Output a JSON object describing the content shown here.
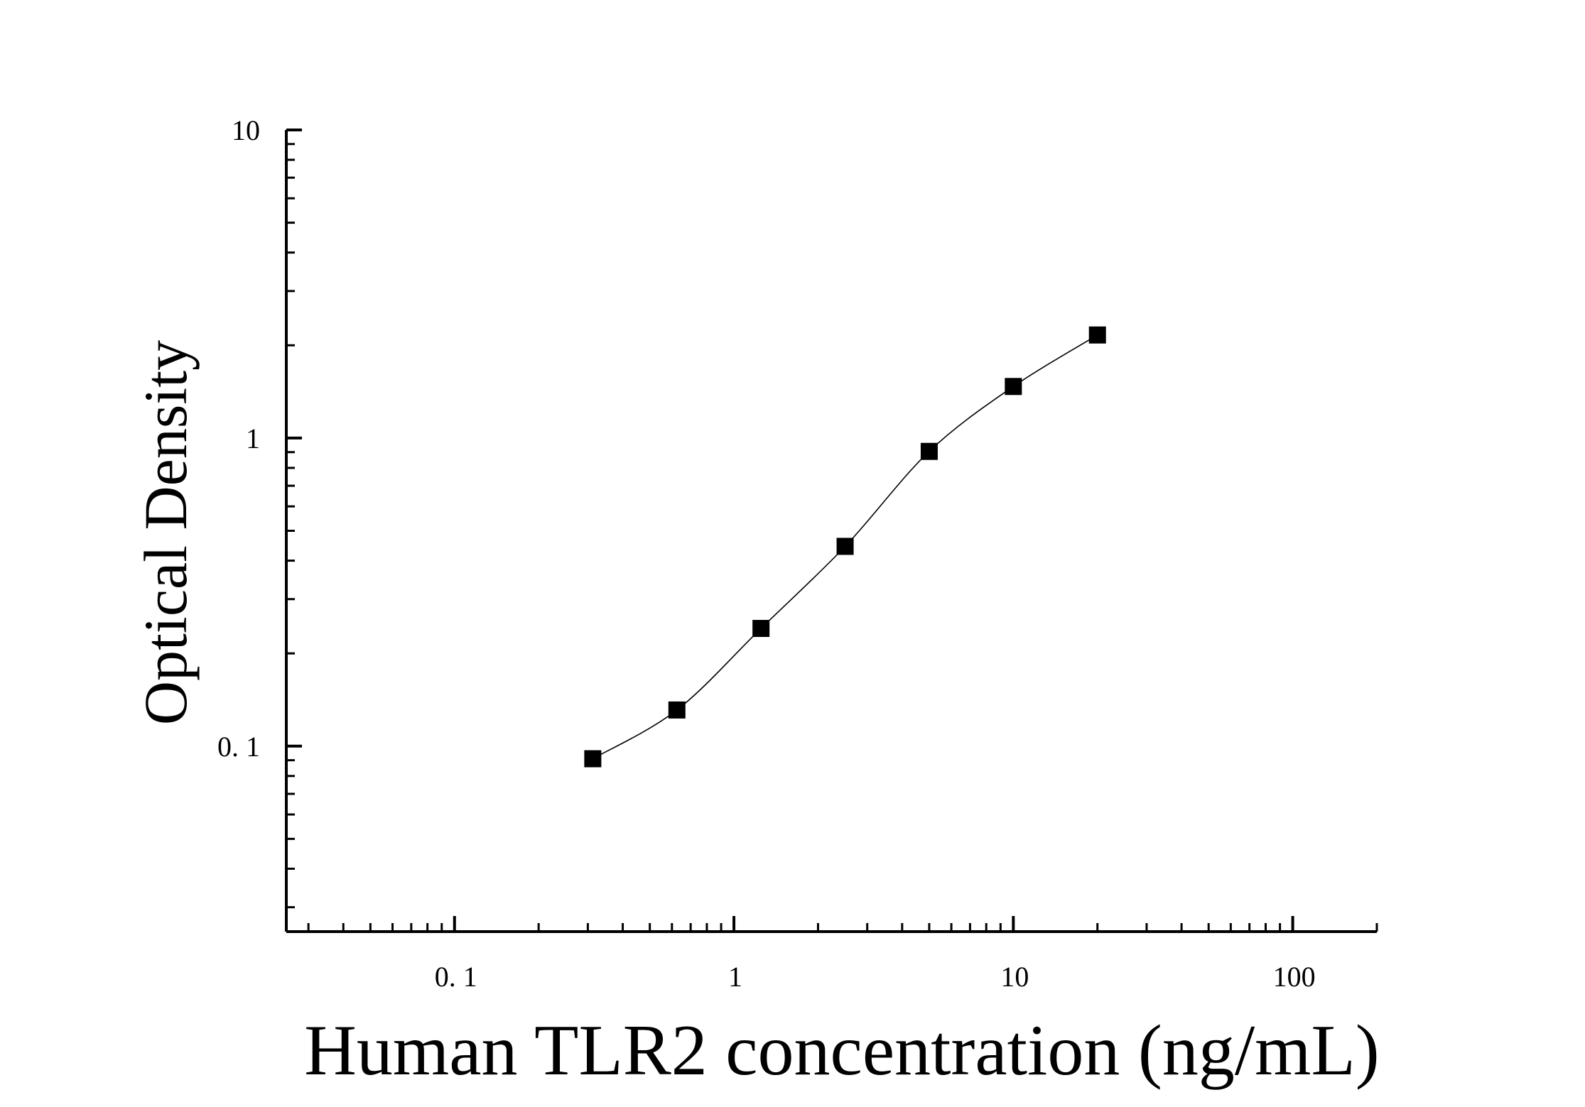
{
  "chart_data": {
    "type": "scatter",
    "title": "",
    "xlabel": "Human TLR2 concentration (ng/mL)",
    "ylabel": "Optical Density",
    "x_scale": "log",
    "y_scale": "log",
    "xlim": [
      0.025,
      200
    ],
    "ylim": [
      0.025,
      10
    ],
    "x_ticks": [
      {
        "value": 0.1,
        "label": "0. 1"
      },
      {
        "value": 1,
        "label": "1"
      },
      {
        "value": 10,
        "label": "10"
      },
      {
        "value": 100,
        "label": "100"
      }
    ],
    "y_ticks": [
      {
        "value": 0.1,
        "label": "0. 1"
      },
      {
        "value": 1,
        "label": "1"
      },
      {
        "value": 10,
        "label": "10"
      }
    ],
    "grid": false,
    "legend": "none",
    "marker": "square",
    "series": [
      {
        "x": [
          0.3125,
          0.625,
          1.25,
          2.5,
          5,
          10,
          20
        ],
        "y": [
          0.091,
          0.131,
          0.241,
          0.445,
          0.905,
          1.47,
          2.16
        ]
      }
    ],
    "fit_curve": true
  }
}
